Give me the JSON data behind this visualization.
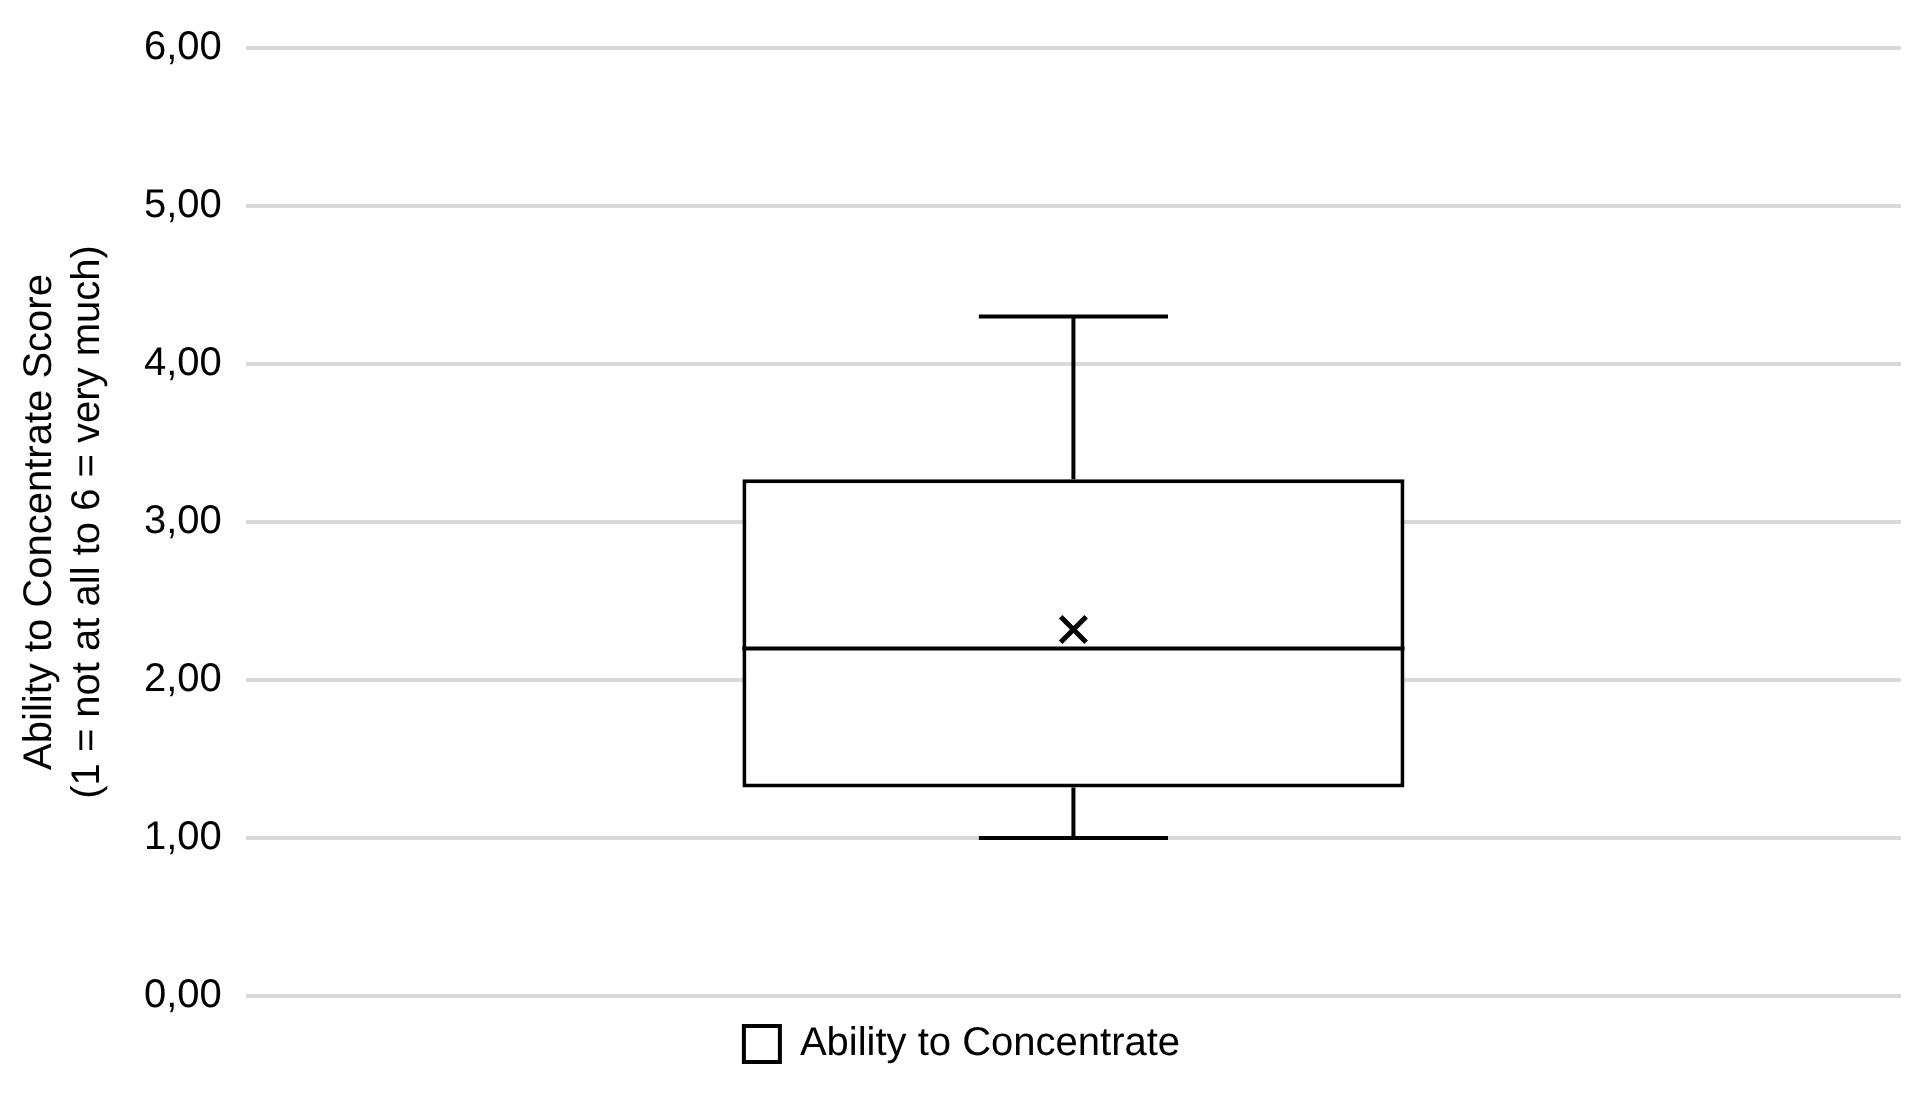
{
  "chart_data": {
    "type": "box",
    "ylabel": "Ability to Concentrate Score\n(1 = not at all to 6 = very much)",
    "categories": [
      null
    ],
    "series": [
      {
        "name": "Ability to Concentrate",
        "color": "#000000",
        "boxes": [
          {
            "low": 1.0,
            "q1": 1.32,
            "median": 2.2,
            "q3": 3.27,
            "high": 4.3,
            "mean": 2.32
          }
        ]
      }
    ],
    "ylim": [
      0,
      6
    ],
    "yticks": [
      {
        "value": 0,
        "label": "0,00"
      },
      {
        "value": 1,
        "label": "1,00"
      },
      {
        "value": 2,
        "label": "2,00"
      },
      {
        "value": 3,
        "label": "3,00"
      },
      {
        "value": 4,
        "label": "4,00"
      },
      {
        "value": 5,
        "label": "5,00"
      },
      {
        "value": 6,
        "label": "6,00"
      }
    ],
    "grid": "y",
    "legend": "bottom",
    "tick_labels": "y",
    "marker": "cross"
  }
}
